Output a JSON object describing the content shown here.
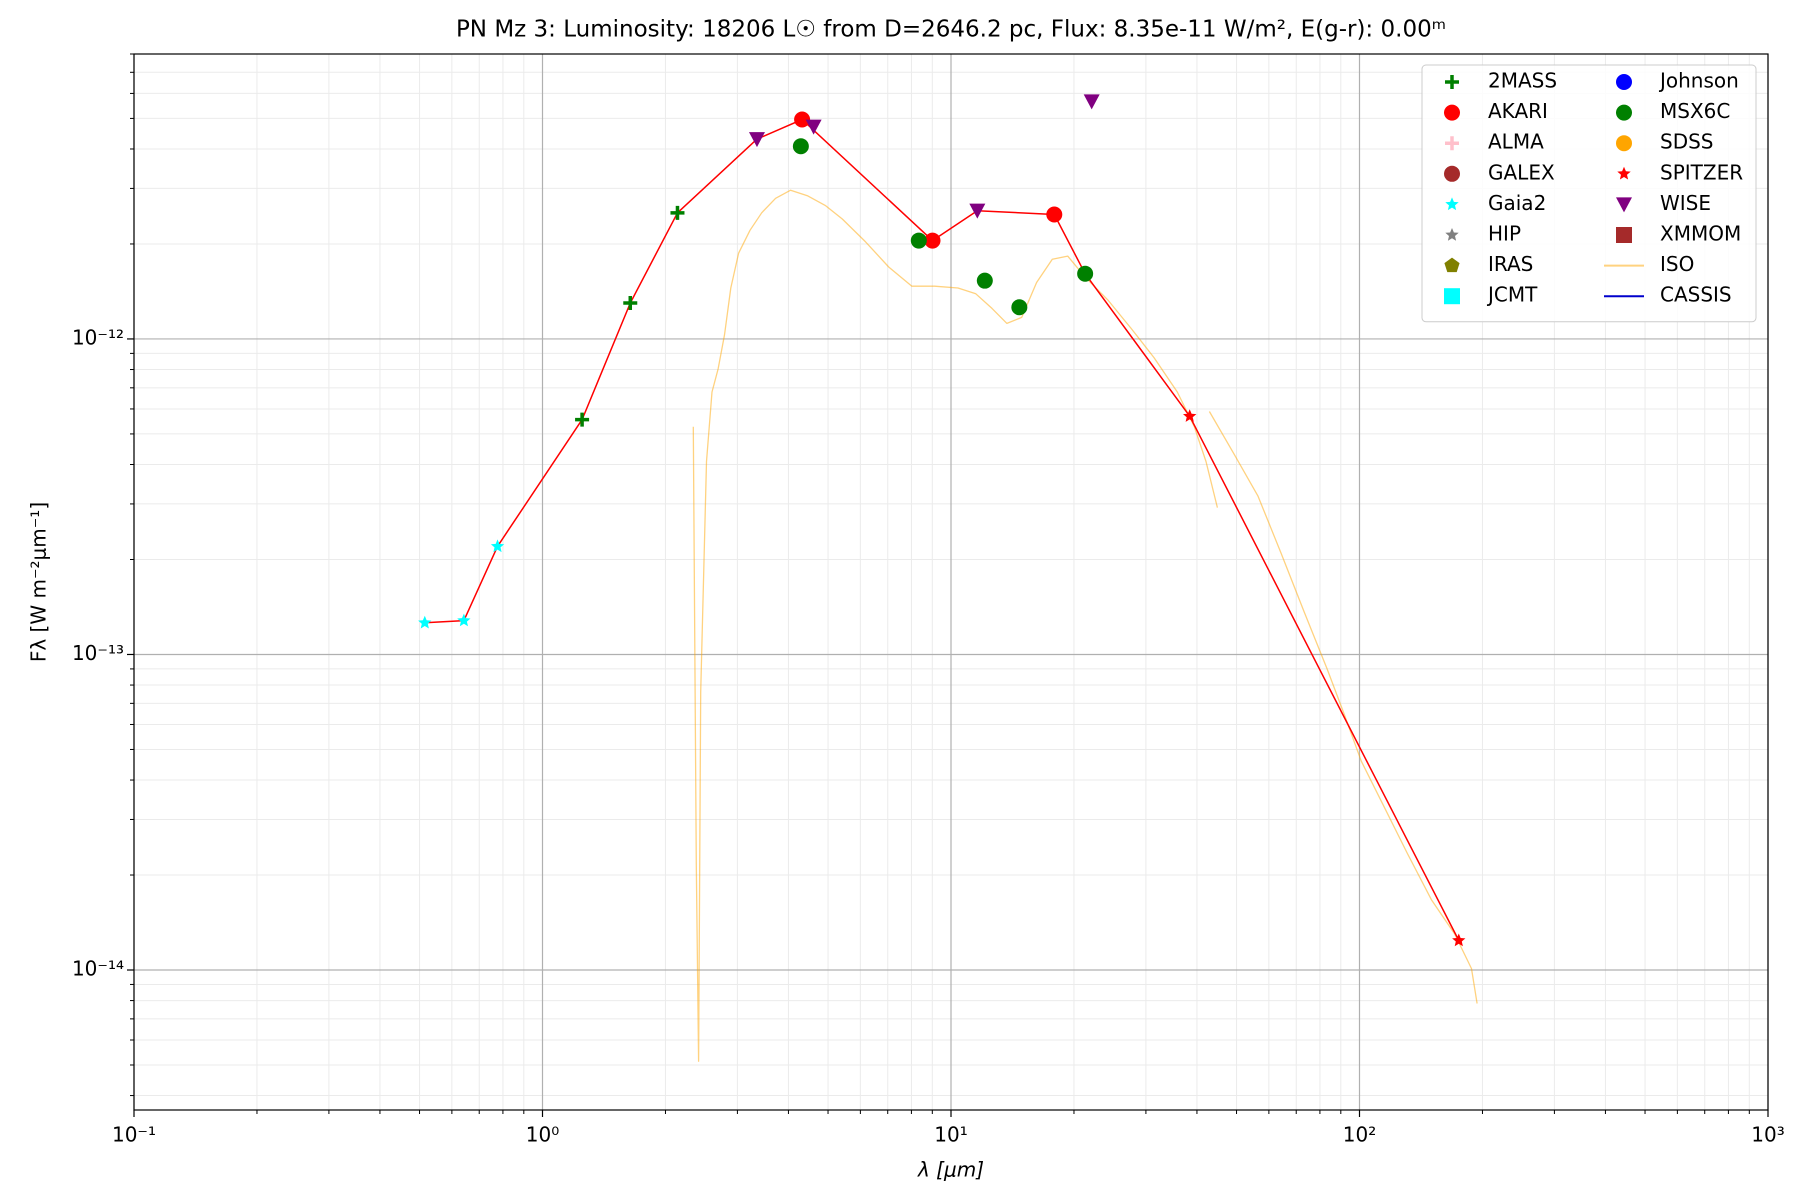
{
  "chart_data": {
    "type": "scatter",
    "title": "PN Mz 3:  Luminosity: 18206 L☉ from D=2646.2 pc, Flux: 8.35e-11 W/m², E(g-r): 0.00ᵐ",
    "xlabel": "λ [μm]",
    "ylabel": "Fλ [W m⁻²μm⁻¹]",
    "xscale": "log",
    "yscale": "log",
    "xlim": [
      0.1,
      1000
    ],
    "ylim": [
      3.6e-15,
      8e-12
    ],
    "xticks": [
      {
        "value": 0.1,
        "label": "10⁻¹"
      },
      {
        "value": 1,
        "label": "10⁰"
      },
      {
        "value": 10,
        "label": "10¹"
      },
      {
        "value": 100,
        "label": "10²"
      },
      {
        "value": 1000,
        "label": "10³"
      }
    ],
    "yticks": [
      {
        "value": 1e-14,
        "label": "10⁻¹⁴"
      },
      {
        "value": 1e-13,
        "label": "10⁻¹³"
      },
      {
        "value": 1e-12,
        "label": "10⁻¹²"
      }
    ],
    "grid": true,
    "minor_grid": true,
    "legend": "upper right",
    "legend_columns": 2,
    "fit_line": {
      "color": "#ff0000",
      "x": [
        0.515,
        0.642,
        0.776,
        1.25,
        1.64,
        2.14,
        3.35,
        4.32,
        9.01,
        11.6,
        17.9,
        21.3,
        38.4,
        175
      ],
      "y": [
        1.26e-13,
        1.28e-13,
        2.2e-13,
        5.55e-13,
        1.3e-12,
        2.51e-12,
        4.3e-12,
        4.96e-12,
        2.05e-12,
        2.55e-12,
        2.48e-12,
        1.61e-12,
        5.69e-13,
        1.24e-14
      ]
    },
    "series": [
      {
        "name": "2MASS",
        "color": "#008000",
        "marker": "plus",
        "x": [
          1.25,
          1.64,
          2.14
        ],
        "y": [
          5.55e-13,
          1.3e-12,
          2.51e-12
        ]
      },
      {
        "name": "AKARI",
        "color": "#ff0000",
        "marker": "circle",
        "x": [
          4.32,
          9.01,
          17.9
        ],
        "y": [
          4.96e-12,
          2.05e-12,
          2.48e-12
        ]
      },
      {
        "name": "ALMA",
        "color": "#ffc0cb",
        "marker": "plus",
        "x": [],
        "y": []
      },
      {
        "name": "GALEX",
        "color": "#a52a2a",
        "marker": "circle",
        "x": [],
        "y": []
      },
      {
        "name": "Gaia2",
        "color": "#00ffff",
        "marker": "star",
        "x": [
          0.515,
          0.642,
          0.776
        ],
        "y": [
          1.26e-13,
          1.28e-13,
          2.2e-13
        ]
      },
      {
        "name": "HIP",
        "color": "#808080",
        "marker": "star",
        "x": [],
        "y": []
      },
      {
        "name": "IRAS",
        "color": "#808000",
        "marker": "pentagon",
        "x": [],
        "y": []
      },
      {
        "name": "JCMT",
        "color": "#00ffff",
        "marker": "square",
        "x": [],
        "y": []
      },
      {
        "name": "Johnson",
        "color": "#0000ff",
        "marker": "circle",
        "x": [],
        "y": []
      },
      {
        "name": "MSX6C",
        "color": "#008000",
        "marker": "circle",
        "x": [
          4.29,
          8.34,
          12.1,
          14.7,
          21.3
        ],
        "y": [
          4.08e-12,
          2.05e-12,
          1.53e-12,
          1.26e-12,
          1.61e-12
        ]
      },
      {
        "name": "SDSS",
        "color": "#ffa500",
        "marker": "circle",
        "x": [],
        "y": []
      },
      {
        "name": "SPITZER",
        "color": "#ff0000",
        "marker": "star",
        "x": [
          38.4,
          175
        ],
        "y": [
          5.69e-13,
          1.24e-14
        ]
      },
      {
        "name": "WISE",
        "color": "#800080",
        "marker": "triangle_down",
        "x": [
          3.35,
          4.61,
          11.6,
          22.1
        ],
        "y": [
          4.3e-12,
          4.71e-12,
          2.55e-12,
          5.66e-12
        ]
      },
      {
        "name": "XMMOM",
        "color": "#a52a2a",
        "marker": "square",
        "x": [],
        "y": []
      },
      {
        "name": "ISO",
        "color": "#ffa500",
        "marker": "line",
        "opacity": 0.5,
        "x": [
          2.34,
          2.38,
          2.41,
          2.44,
          2.52,
          2.6,
          2.69,
          2.79,
          2.89,
          3.02,
          3.22,
          3.44,
          3.72,
          4.05,
          4.46,
          4.92,
          5.42,
          6.18,
          7.04,
          8.02,
          9.12,
          10.4,
          11.5,
          12.6,
          13.7,
          14.9,
          16.2,
          17.7,
          19.3,
          21.3,
          24.2,
          27.6,
          31.4,
          35.8,
          39.4,
          42.1,
          44.9,
          null,
          42.9,
          49.5,
          56.4,
          64.3,
          73.1,
          83.3,
          91.9,
          101,
          115,
          131,
          150,
          171,
          188,
          194
        ],
        "y": [
          5.27e-13,
          2.15e-14,
          5.14e-15,
          7.6e-14,
          4.09e-13,
          6.79e-13,
          8.03e-13,
          1.03e-12,
          1.45e-12,
          1.87e-12,
          2.21e-12,
          2.51e-12,
          2.79e-12,
          2.96e-12,
          2.84e-12,
          2.65e-12,
          2.4e-12,
          2.03e-12,
          1.69e-12,
          1.47e-12,
          1.47e-12,
          1.45e-12,
          1.39e-12,
          1.25e-12,
          1.12e-12,
          1.17e-12,
          1.51e-12,
          1.79e-12,
          1.83e-12,
          1.57e-12,
          1.33e-12,
          1.08e-12,
          8.73e-13,
          6.79e-13,
          5.27e-13,
          4.09e-13,
          2.92e-13,
          null,
          5.89e-13,
          4.28e-13,
          3.18e-13,
          2.09e-13,
          1.37e-13,
          9e-14,
          6.43e-14,
          4.59e-14,
          3.28e-14,
          2.34e-14,
          1.67e-14,
          1.3e-14,
          1.01e-14,
          7.83e-15
        ]
      },
      {
        "name": "CASSIS",
        "color": "#0000cc",
        "marker": "line",
        "x": [],
        "y": []
      }
    ]
  }
}
